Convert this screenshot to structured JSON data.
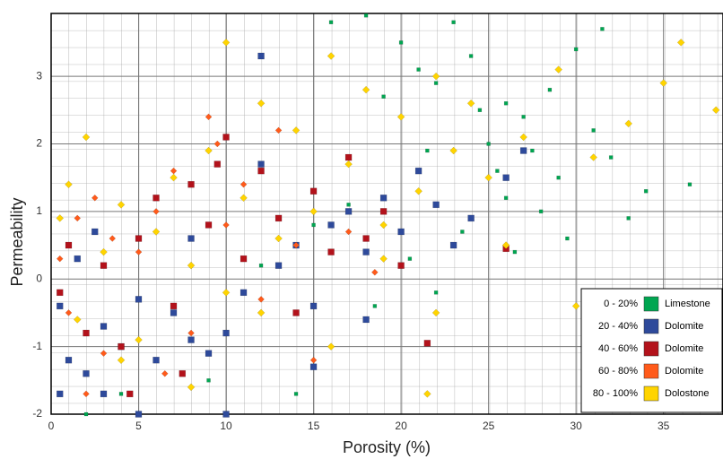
{
  "chart_data": {
    "type": "scatter",
    "x_label": "Porosity (%)",
    "y_label": "Permeability",
    "xlim": [
      0,
      38.4
    ],
    "ylim": [
      -2,
      3.93
    ],
    "xticks": [
      0,
      5,
      10,
      15,
      20,
      25,
      30,
      35
    ],
    "yticks": [
      -2,
      -1,
      0,
      1,
      2,
      3
    ],
    "grid": true,
    "legend_position": "lower right",
    "series": [
      {
        "name": "Limestone",
        "range": "0 - 20%",
        "color": "#00a651",
        "marker": "square",
        "x": [
          16,
          18,
          20,
          21,
          22,
          23,
          24,
          24.5,
          25,
          25.5,
          26,
          27,
          27.5,
          28,
          28.5,
          29,
          30,
          31,
          32,
          33,
          34,
          36.5,
          19,
          21.5,
          23.5,
          26.5,
          17,
          15,
          12,
          20.5,
          22,
          24,
          26,
          29.5,
          31.5,
          18.5,
          9,
          4,
          2,
          14
        ],
        "values": [
          3.8,
          3.9,
          3.5,
          3.1,
          2.9,
          3.8,
          3.3,
          2.5,
          2.0,
          1.6,
          1.2,
          2.4,
          1.9,
          1.0,
          2.8,
          1.5,
          3.4,
          2.2,
          1.8,
          0.9,
          1.3,
          1.4,
          2.7,
          1.9,
          0.7,
          0.4,
          1.1,
          0.8,
          0.2,
          0.3,
          -0.2,
          0.9,
          2.6,
          0.6,
          3.7,
          -0.4,
          -1.5,
          -1.7,
          -2.0,
          -1.7
        ]
      },
      {
        "name": "Dolomite",
        "range": "20 - 40%",
        "color": "#2e4a9b",
        "marker": "square",
        "x": [
          0.5,
          1,
          1.5,
          2,
          3,
          4,
          5,
          6,
          7,
          8,
          9,
          10,
          11,
          12,
          13,
          14,
          15,
          16,
          17,
          18,
          19,
          20,
          21,
          22,
          23,
          24,
          26,
          12,
          2.5,
          0.5,
          5,
          10,
          15,
          8,
          18,
          27,
          3
        ],
        "values": [
          -0.4,
          -1.2,
          0.3,
          -1.4,
          -0.7,
          -1.0,
          -0.3,
          -1.2,
          -0.5,
          -0.9,
          -1.1,
          -0.8,
          -0.2,
          3.3,
          0.2,
          0.5,
          -0.4,
          0.8,
          1.0,
          0.4,
          1.2,
          0.7,
          1.6,
          1.1,
          0.5,
          0.9,
          1.5,
          1.7,
          0.7,
          -1.7,
          -2.0,
          -2.0,
          -1.3,
          0.6,
          -0.6,
          1.9,
          -1.7
        ]
      },
      {
        "name": "Dolomite",
        "range": "40 - 60%",
        "color": "#b3121b",
        "marker": "square",
        "x": [
          0.5,
          1,
          2,
          3,
          4,
          5,
          6,
          7,
          8,
          9,
          10,
          11,
          12,
          13,
          14,
          15,
          16,
          17,
          18,
          19,
          20,
          21.5,
          26,
          9.5,
          7.5,
          4.5
        ],
        "values": [
          -0.2,
          0.5,
          -0.8,
          0.2,
          -1.0,
          0.6,
          1.2,
          -0.4,
          1.4,
          0.8,
          2.1,
          0.3,
          1.6,
          0.9,
          -0.5,
          1.3,
          0.4,
          1.8,
          0.6,
          1.0,
          0.2,
          -0.95,
          0.45,
          1.7,
          -1.4,
          -1.7
        ]
      },
      {
        "name": "Dolomite",
        "range": "60 - 80%",
        "color": "#ff5a1a",
        "marker": "diamond",
        "x": [
          0.5,
          1,
          1.5,
          2.5,
          3,
          3.5,
          5,
          6,
          7,
          8,
          9,
          9.5,
          10,
          11,
          12,
          13,
          14,
          15,
          17,
          18.5,
          2,
          6.5
        ],
        "values": [
          0.3,
          -0.5,
          0.9,
          1.2,
          -1.1,
          0.6,
          0.4,
          1.0,
          1.6,
          -0.8,
          2.4,
          2.0,
          0.8,
          1.4,
          -0.3,
          2.2,
          0.5,
          -1.2,
          0.7,
          0.1,
          -1.7,
          -1.4
        ]
      },
      {
        "name": "Dolostone",
        "range": "80 - 100%",
        "color": "#ffd400",
        "marker": "diamond",
        "x": [
          0.5,
          1,
          1.5,
          2,
          3,
          4,
          5,
          6,
          7,
          8,
          9,
          10,
          11,
          12,
          13,
          14,
          15,
          16,
          17,
          18,
          19,
          20,
          21,
          22,
          23,
          24,
          25,
          27,
          29,
          31,
          33,
          35,
          36,
          38,
          12,
          16,
          19,
          22,
          8,
          4,
          26,
          21.5,
          10,
          30
        ],
        "values": [
          0.9,
          1.4,
          -0.6,
          2.1,
          0.4,
          1.1,
          -0.9,
          0.7,
          1.5,
          0.2,
          1.9,
          3.5,
          1.2,
          2.6,
          0.6,
          2.2,
          1.0,
          3.3,
          1.7,
          2.8,
          0.8,
          2.4,
          1.3,
          3.0,
          1.9,
          2.6,
          1.5,
          2.1,
          3.1,
          1.8,
          2.3,
          2.9,
          3.5,
          2.5,
          -0.5,
          -1.0,
          0.3,
          -0.5,
          -1.6,
          -1.2,
          0.5,
          -1.7,
          -0.2,
          -0.4
        ]
      }
    ]
  }
}
